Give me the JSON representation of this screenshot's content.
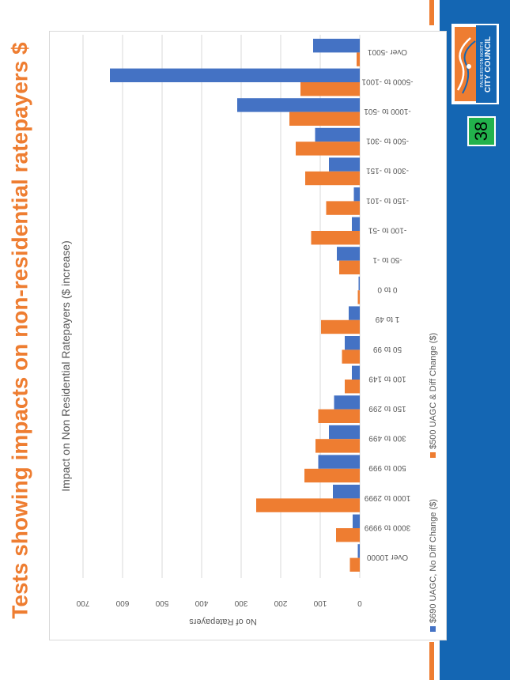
{
  "slide": {
    "title": "Tests showing impacts on non-residential ratepayers $",
    "number": "38",
    "logo": {
      "line1": "PALMERSTON NORTH",
      "line2": "CITY COUNCIL"
    },
    "colors": {
      "brand_blue": "#1466b3",
      "accent_orange": "#ee7d31",
      "badge_green": "#22b24c"
    }
  },
  "chart_data": {
    "type": "bar",
    "orientation": "horizontal",
    "title": "Impact on Non Residential Ratepayers ($ increase)",
    "xlabel": "No of Ratepayers",
    "ylabel": "",
    "xlim": [
      0,
      700
    ],
    "xticks": [
      0,
      100,
      200,
      300,
      400,
      500,
      600,
      700
    ],
    "grid": true,
    "legend_position": "bottom",
    "categories": [
      "Over 10000",
      "3000 to 9999",
      "1000 to 2999",
      "500 to 999",
      "300 to 499",
      "150 to 299",
      "100 to 149",
      "50 to 99",
      "1 to 49",
      "0 to 0",
      "-50 to -1",
      "-100 to -51",
      "-150 to -101",
      "-300 to -151",
      "-500 to -301",
      "-1000 to -501",
      "-5000 to -1001",
      "Over -5001"
    ],
    "series": [
      {
        "name": "$690 UAGC, No Diff Change ($)",
        "color": "#4472c4",
        "values": [
          5,
          18,
          68,
          105,
          78,
          65,
          20,
          38,
          28,
          3,
          58,
          20,
          15,
          78,
          113,
          310,
          632,
          118
        ]
      },
      {
        "name": "$500 UAGC & Diff Change ($)",
        "color": "#ee7d31",
        "values": [
          25,
          60,
          262,
          140,
          112,
          105,
          38,
          45,
          98,
          5,
          52,
          123,
          85,
          138,
          162,
          178,
          150,
          8
        ]
      }
    ]
  }
}
